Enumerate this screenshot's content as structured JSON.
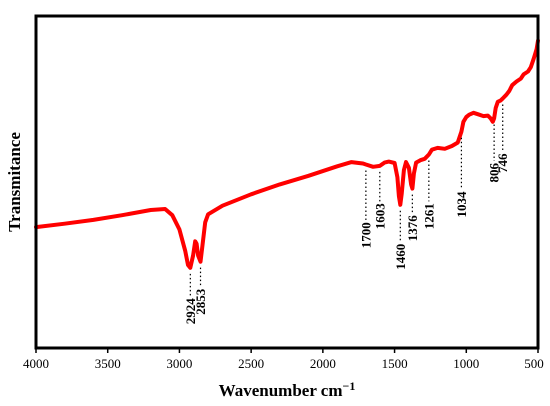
{
  "chart_data": {
    "type": "line",
    "title": "",
    "xlabel": "Wavenumber cm",
    "xlabel_superscript": "−1",
    "ylabel": "Transmitance",
    "xlim": [
      4000,
      500
    ],
    "x_reversed": true,
    "y_ticks_shown": false,
    "grid": false,
    "line_color": "#ff0000",
    "x_ticks": [
      "4000",
      "3500",
      "3000",
      "2500",
      "2000",
      "1500",
      "1000",
      "500"
    ],
    "series": [
      {
        "x": [
          4000,
          3800,
          3600,
          3400,
          3200,
          3100,
          3050,
          3000,
          2960,
          2940,
          2924,
          2905,
          2890,
          2880,
          2870,
          2853,
          2840,
          2820,
          2800,
          2700,
          2500,
          2300,
          2100,
          1900,
          1800,
          1750,
          1720,
          1700,
          1650,
          1603,
          1570,
          1540,
          1500,
          1480,
          1470,
          1460,
          1450,
          1435,
          1420,
          1400,
          1385,
          1376,
          1365,
          1350,
          1320,
          1290,
          1261,
          1240,
          1200,
          1150,
          1100,
          1060,
          1034,
          1020,
          1000,
          980,
          950,
          920,
          880,
          850,
          830,
          815,
          806,
          795,
          780,
          760,
          746,
          720,
          700,
          680,
          650,
          620,
          600,
          570,
          550,
          530,
          510,
          500
        ],
        "y": [
          13.5,
          14.2,
          15.0,
          16.0,
          17.1,
          17.3,
          16.0,
          13.0,
          8.5,
          5.5,
          4.9,
          7.5,
          10.5,
          10.0,
          7.5,
          6.2,
          9.5,
          14.5,
          16.2,
          18.0,
          20.4,
          22.5,
          24.3,
          26.3,
          27.2,
          27.0,
          26.9,
          26.7,
          26.2,
          26.4,
          27.1,
          27.3,
          27.0,
          24.0,
          20.0,
          18.2,
          20.5,
          25.5,
          27.2,
          26.0,
          22.5,
          21.6,
          24.8,
          27.1,
          27.6,
          27.9,
          28.8,
          29.8,
          30.2,
          30.0,
          30.6,
          31.3,
          33.6,
          35.7,
          36.7,
          37.2,
          37.6,
          37.3,
          36.9,
          37.0,
          36.4,
          35.7,
          36.4,
          38.6,
          39.9,
          40.2,
          40.6,
          41.4,
          42.2,
          43.4,
          44.2,
          44.8,
          45.7,
          46.3,
          47.2,
          49.0,
          51.0,
          52.8
        ]
      }
    ],
    "ylim": [
      -12,
      58
    ],
    "annotations": [
      {
        "label": "2924",
        "x": 2924,
        "y": 4.9,
        "label_y": -1.5
      },
      {
        "label": "2853",
        "x": 2853,
        "y": 6.2,
        "label_y": 0.5
      },
      {
        "label": "1700",
        "x": 1700,
        "y": 26.7,
        "label_y": 14.5
      },
      {
        "label": "1603",
        "x": 1603,
        "y": 26.4,
        "label_y": 18.5
      },
      {
        "label": "1460",
        "x": 1460,
        "y": 18.2,
        "label_y": 10.0
      },
      {
        "label": "1376",
        "x": 1376,
        "y": 21.6,
        "label_y": 16.0
      },
      {
        "label": "1261",
        "x": 1261,
        "y": 28.8,
        "label_y": 18.5
      },
      {
        "label": "1034",
        "x": 1034,
        "y": 33.6,
        "label_y": 21.0
      },
      {
        "label": "806",
        "x": 806,
        "y": 36.4,
        "label_y": 27.0
      },
      {
        "label": "746",
        "x": 746,
        "y": 40.6,
        "label_y": 29.0
      }
    ]
  }
}
